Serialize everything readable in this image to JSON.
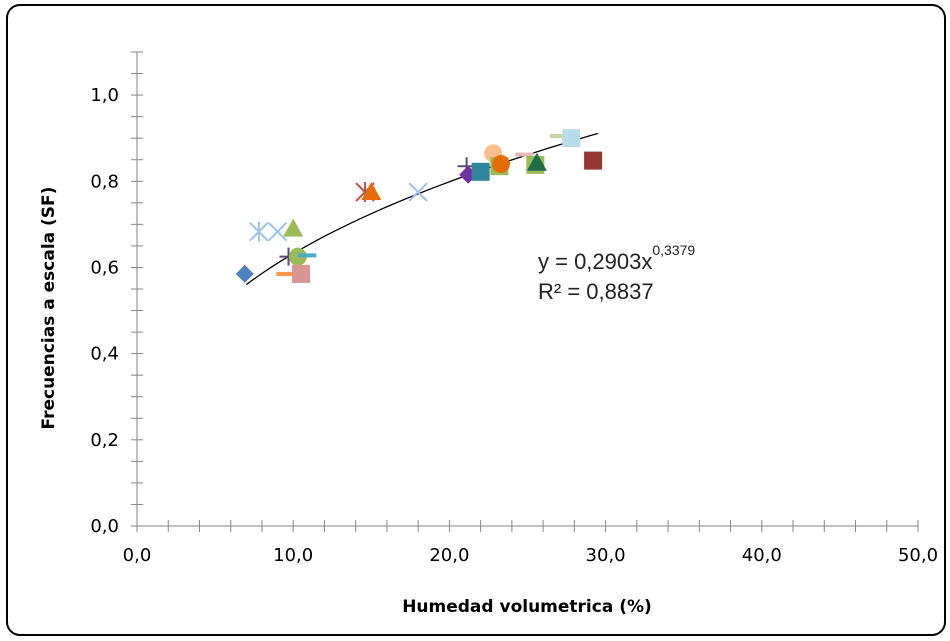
{
  "chart_data": {
    "type": "scatter",
    "title": "",
    "xlabel": "Humedad volumetrica (%)",
    "ylabel": "Frecuencias a escala (SF)",
    "xlim": [
      0,
      50
    ],
    "ylim": [
      0,
      1.1
    ],
    "x_ticks": [
      "0,0",
      "10,0",
      "20,0",
      "30,0",
      "40,0",
      "50,0"
    ],
    "y_ticks": [
      "0,0",
      "0,2",
      "0,4",
      "0,6",
      "0,8",
      "1,0"
    ],
    "grid": false,
    "legend": "none",
    "trendline": {
      "type": "power",
      "a": 0.2903,
      "b": 0.3379,
      "x_range": [
        7,
        29.5
      ],
      "equation_base": "y = 0,2903x",
      "equation_exp": "0,3379",
      "r2_label": "R² = 0,8837"
    },
    "points": [
      {
        "x": 6.9,
        "y": 0.585,
        "marker": "diamond",
        "color": "#4f81bd"
      },
      {
        "x": 7.8,
        "y": 0.683,
        "marker": "asterisk",
        "color": "#9dc3e6"
      },
      {
        "x": 9.0,
        "y": 0.683,
        "marker": "x",
        "color": "#9dc3e6"
      },
      {
        "x": 9.5,
        "y": 0.585,
        "marker": "dash",
        "color": "#f79646"
      },
      {
        "x": 9.7,
        "y": 0.625,
        "marker": "plus",
        "color": "#604a7b"
      },
      {
        "x": 10.0,
        "y": 0.69,
        "marker": "triangle",
        "color": "#9bbb59"
      },
      {
        "x": 10.3,
        "y": 0.625,
        "marker": "circle",
        "color": "#9bbb59"
      },
      {
        "x": 10.9,
        "y": 0.628,
        "marker": "dash",
        "color": "#4bacc6"
      },
      {
        "x": 10.5,
        "y": 0.585,
        "marker": "square",
        "color": "#d99694"
      },
      {
        "x": 14.6,
        "y": 0.775,
        "marker": "asterisk",
        "color": "#c0504d"
      },
      {
        "x": 15.0,
        "y": 0.775,
        "marker": "triangle",
        "color": "#e46c0a"
      },
      {
        "x": 18.0,
        "y": 0.775,
        "marker": "x",
        "color": "#9dc3e6"
      },
      {
        "x": 21.1,
        "y": 0.835,
        "marker": "plus",
        "color": "#604a7b"
      },
      {
        "x": 21.2,
        "y": 0.815,
        "marker": "diamond",
        "color": "#7030a0"
      },
      {
        "x": 22.0,
        "y": 0.822,
        "marker": "square",
        "color": "#31859c"
      },
      {
        "x": 22.8,
        "y": 0.865,
        "marker": "circle",
        "color": "#fabf8f"
      },
      {
        "x": 23.2,
        "y": 0.835,
        "marker": "square",
        "color": "#9bbb59"
      },
      {
        "x": 23.3,
        "y": 0.84,
        "marker": "circle",
        "color": "#e46c0a"
      },
      {
        "x": 24.8,
        "y": 0.862,
        "marker": "dash",
        "color": "#e6b9b8"
      },
      {
        "x": 25.5,
        "y": 0.838,
        "marker": "square",
        "color": "#9bbb59"
      },
      {
        "x": 25.6,
        "y": 0.843,
        "marker": "triangle",
        "color": "#1f6b4a"
      },
      {
        "x": 27.0,
        "y": 0.905,
        "marker": "dash",
        "color": "#c4d79b"
      },
      {
        "x": 27.8,
        "y": 0.9,
        "marker": "square",
        "color": "#b7dee8"
      },
      {
        "x": 29.2,
        "y": 0.848,
        "marker": "square",
        "color": "#953735"
      }
    ]
  }
}
